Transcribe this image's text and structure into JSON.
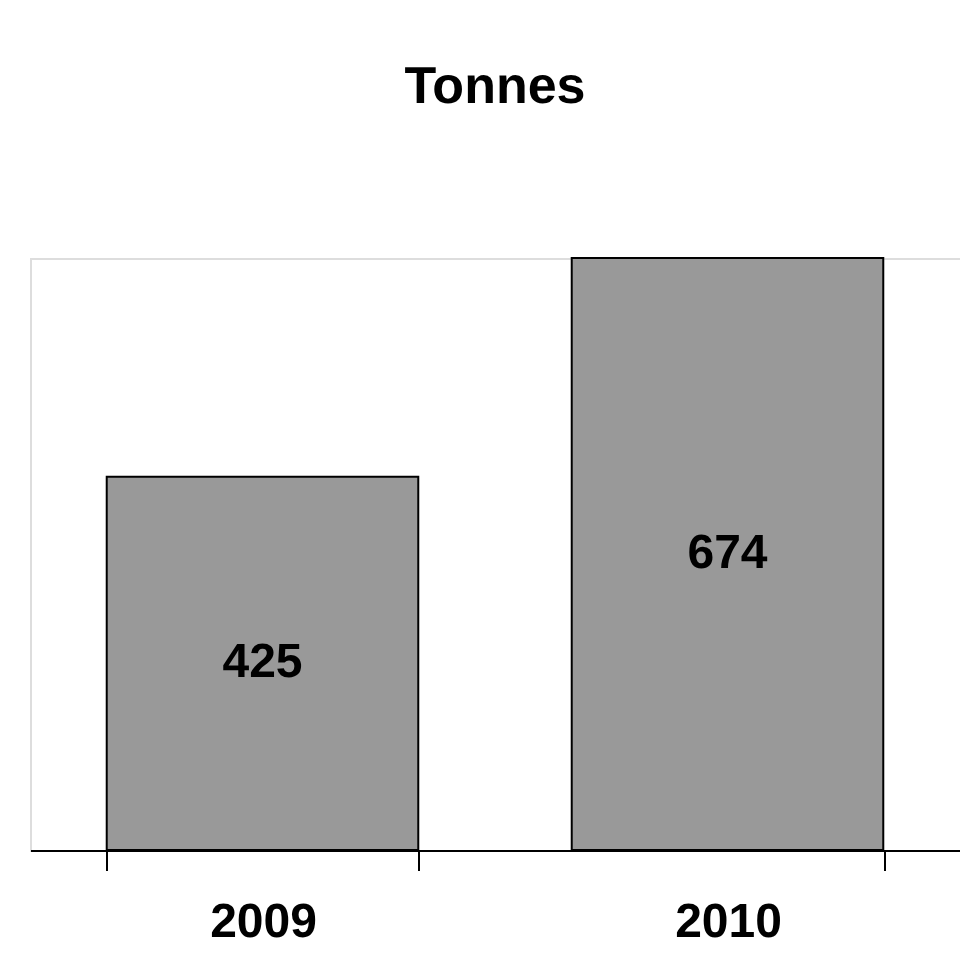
{
  "chart_data": {
    "type": "bar",
    "title": "Tonnes",
    "categories": [
      "2009",
      "2010"
    ],
    "values": [
      425,
      674
    ],
    "color": "#999999",
    "data_labels": true
  }
}
